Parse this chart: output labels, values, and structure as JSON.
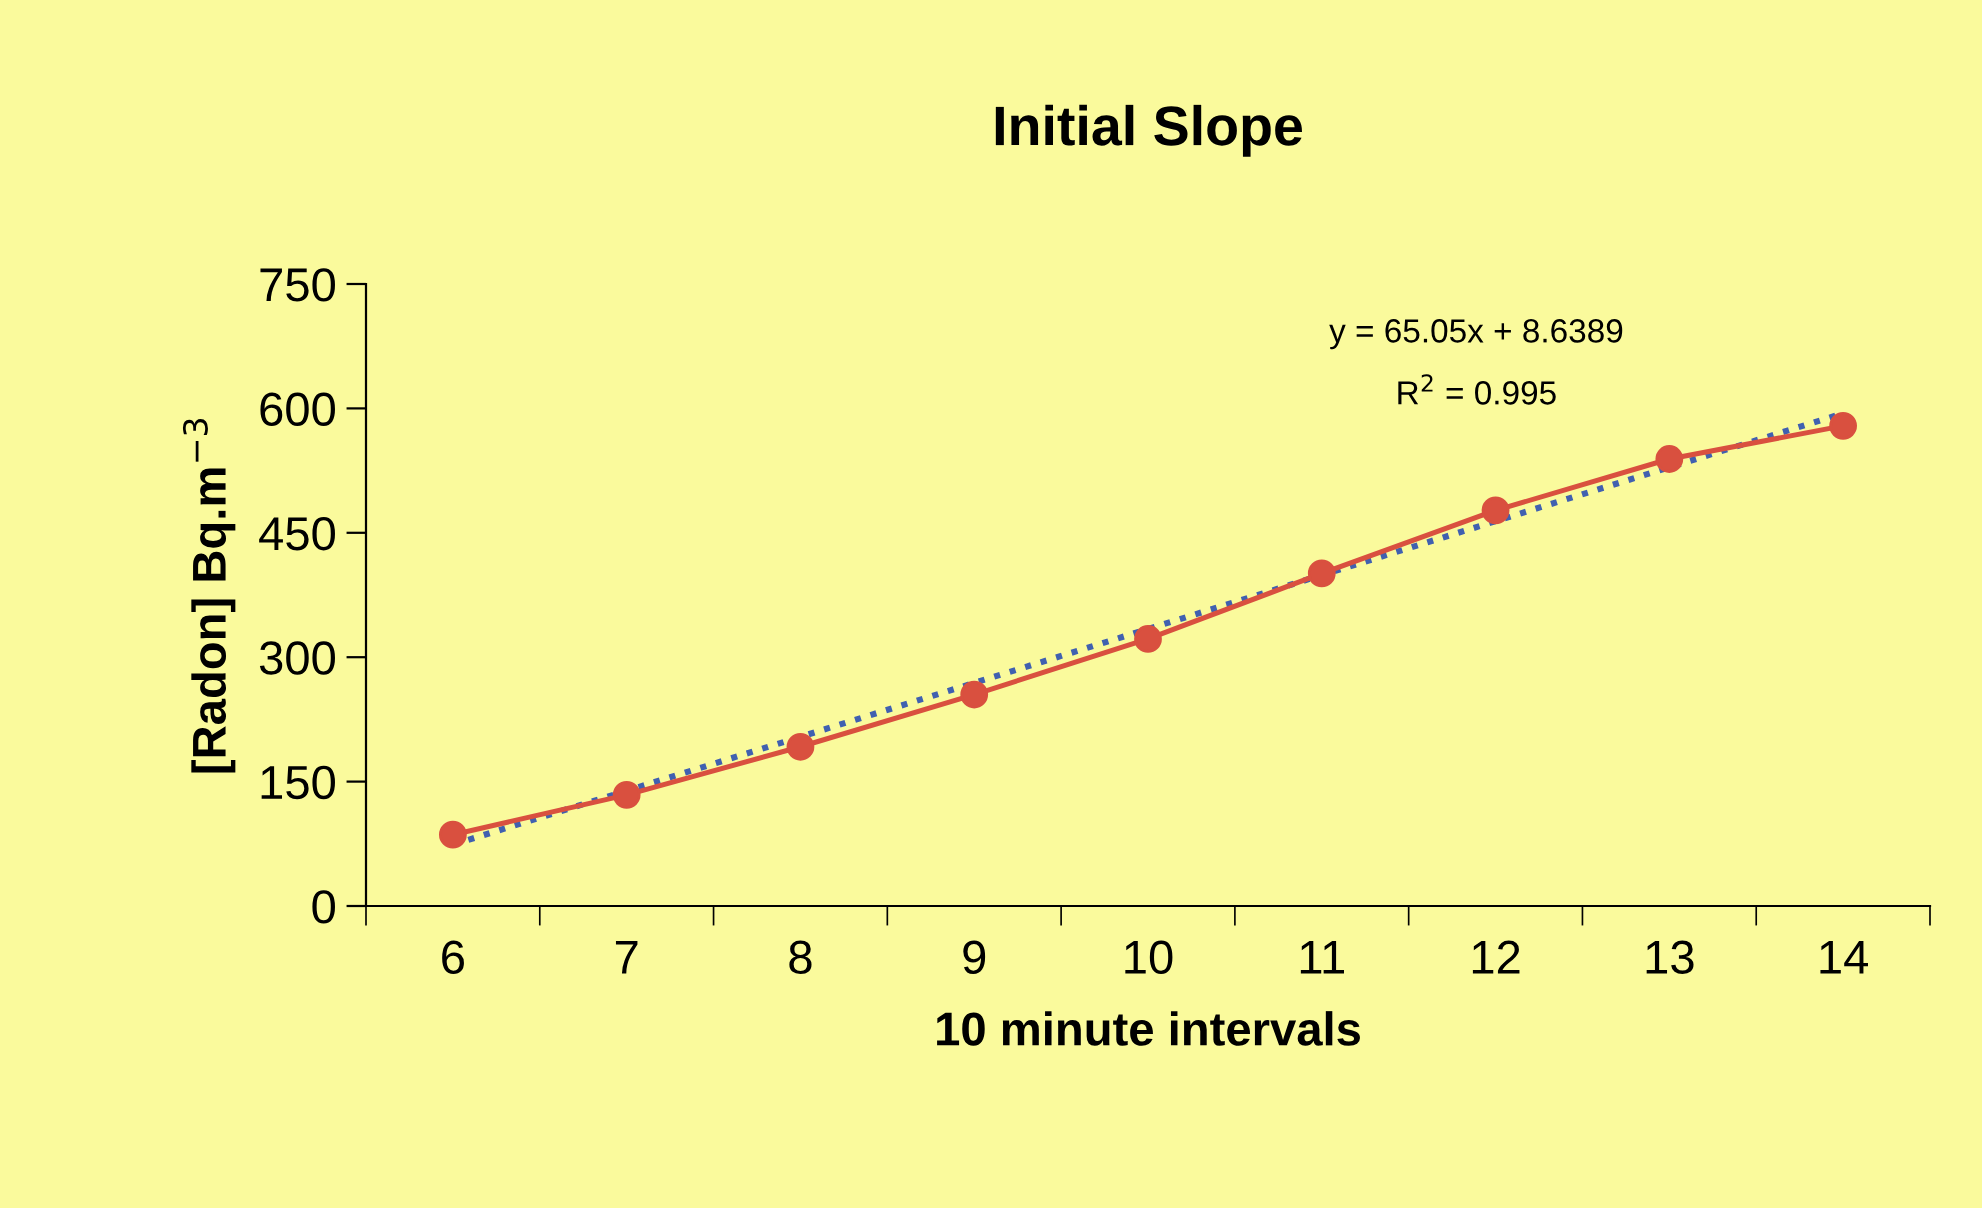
{
  "chart_data": {
    "type": "line",
    "title": "Initial Slope",
    "xlabel": "10 minute intervals",
    "ylabel": "[Radon] Bq.m$^{−3}$",
    "categories": [
      "6",
      "7",
      "8",
      "9",
      "10",
      "11",
      "12",
      "13",
      "14"
    ],
    "series": [
      {
        "color": "#d9503f",
        "values": [
          86,
          134,
          192,
          255,
          322,
          401,
          477,
          539,
          579
        ],
        "marker": "circle",
        "line_style": "solid"
      },
      {
        "color": "#4060b0",
        "values": [
          74,
          139,
          204,
          269,
          334,
          399,
          464,
          529,
          594
        ],
        "marker": "none",
        "line_style": "dotted"
      }
    ],
    "annotations": [
      "y = 65.05x + 8.6389",
      "R$^{2}$ = 0.995"
    ],
    "ylim": [
      0,
      750
    ],
    "yticks": [
      0,
      150,
      300,
      450,
      600,
      750
    ],
    "grid": false
  }
}
